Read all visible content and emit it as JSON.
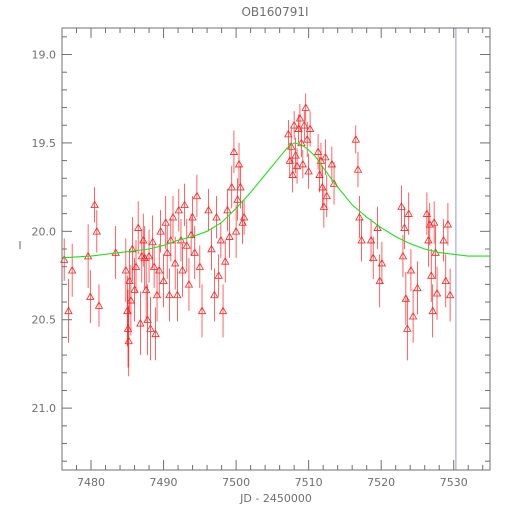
{
  "chart_data": {
    "type": "scatter",
    "title": "OB160791I",
    "xlabel": "JD - 2450000",
    "ylabel": "I",
    "xlim": [
      7476,
      7535
    ],
    "ylim": [
      21.35,
      18.85
    ],
    "y_inverted": true,
    "xticks": [
      7480,
      7490,
      7500,
      7510,
      7520,
      7530
    ],
    "yticks": [
      19.0,
      19.5,
      20.0,
      20.5,
      21.0
    ],
    "xtick_labels": [
      "7480",
      "7490",
      "7500",
      "7510",
      "7520",
      "7530"
    ],
    "ytick_labels": [
      "19.0",
      "19.5",
      "20.0",
      "20.5",
      "21.0"
    ],
    "grid": false,
    "marker": "triangle",
    "colors": {
      "data": "#ff2020",
      "model": "#20e020",
      "vline": "#9999cc",
      "axes": "#707070"
    },
    "vline_x": 7530.3,
    "series": [
      {
        "points": [
          [
            7476.3,
            20.16,
            0.12
          ],
          [
            7476.9,
            20.45,
            0.18
          ],
          [
            7477.4,
            20.22,
            0.15
          ],
          [
            7479.6,
            20.14,
            0.18
          ],
          [
            7479.9,
            20.37,
            0.15
          ],
          [
            7480.5,
            19.85,
            0.1
          ],
          [
            7480.8,
            20.0,
            0.12
          ],
          [
            7481.1,
            20.42,
            0.12
          ],
          [
            7483.4,
            20.12,
            0.15
          ],
          [
            7484.8,
            20.22,
            0.18
          ],
          [
            7485.0,
            20.45,
            0.2
          ],
          [
            7485.1,
            20.55,
            0.22
          ],
          [
            7485.2,
            20.62,
            0.2
          ],
          [
            7485.3,
            20.28,
            0.18
          ],
          [
            7485.5,
            20.39,
            0.2
          ],
          [
            7485.7,
            20.1,
            0.18
          ],
          [
            7486.0,
            20.33,
            0.18
          ],
          [
            7486.2,
            20.2,
            0.15
          ],
          [
            7486.5,
            19.98,
            0.15
          ],
          [
            7486.8,
            20.52,
            0.18
          ],
          [
            7487.0,
            20.14,
            0.15
          ],
          [
            7487.2,
            20.05,
            0.15
          ],
          [
            7487.4,
            20.15,
            0.18
          ],
          [
            7487.6,
            20.33,
            0.18
          ],
          [
            7487.8,
            20.5,
            0.2
          ],
          [
            7488.0,
            20.14,
            0.15
          ],
          [
            7488.2,
            20.55,
            0.18
          ],
          [
            7488.5,
            20.06,
            0.15
          ],
          [
            7488.7,
            20.2,
            0.12
          ],
          [
            7488.9,
            20.58,
            0.15
          ],
          [
            7489.1,
            20.36,
            0.15
          ],
          [
            7489.4,
            20.22,
            0.15
          ],
          [
            7489.6,
            20.0,
            0.12
          ],
          [
            7490.0,
            20.28,
            0.15
          ],
          [
            7490.3,
            19.95,
            0.15
          ],
          [
            7490.5,
            20.12,
            0.15
          ],
          [
            7490.8,
            20.36,
            0.15
          ],
          [
            7491.0,
            20.05,
            0.12
          ],
          [
            7491.3,
            19.92,
            0.12
          ],
          [
            7491.6,
            20.18,
            0.15
          ],
          [
            7491.9,
            20.36,
            0.15
          ],
          [
            7492.1,
            19.88,
            0.12
          ],
          [
            7492.4,
            20.05,
            0.12
          ],
          [
            7492.6,
            20.22,
            0.15
          ],
          [
            7492.9,
            19.85,
            0.12
          ],
          [
            7493.2,
            20.08,
            0.15
          ],
          [
            7493.5,
            20.3,
            0.15
          ],
          [
            7493.8,
            20.02,
            0.12
          ],
          [
            7494.0,
            19.92,
            0.12
          ],
          [
            7494.3,
            20.12,
            0.15
          ],
          [
            7494.6,
            19.8,
            0.12
          ],
          [
            7495.0,
            20.2,
            0.12
          ],
          [
            7495.3,
            20.45,
            0.15
          ],
          [
            7496.2,
            19.88,
            0.12
          ],
          [
            7496.6,
            20.1,
            0.12
          ],
          [
            7497.0,
            20.36,
            0.15
          ],
          [
            7497.3,
            19.92,
            0.12
          ],
          [
            7497.6,
            20.25,
            0.12
          ],
          [
            7497.9,
            20.05,
            0.1
          ],
          [
            7498.2,
            20.45,
            0.15
          ],
          [
            7498.5,
            20.17,
            0.12
          ],
          [
            7498.8,
            19.88,
            0.12
          ],
          [
            7499.1,
            20.03,
            0.12
          ],
          [
            7499.4,
            19.75,
            0.12
          ],
          [
            7499.7,
            19.55,
            0.12
          ],
          [
            7500.0,
            20.0,
            0.15
          ],
          [
            7500.2,
            19.82,
            0.12
          ],
          [
            7500.4,
            19.62,
            0.12
          ],
          [
            7500.6,
            19.75,
            0.12
          ],
          [
            7500.9,
            19.95,
            0.12
          ],
          [
            7501.1,
            19.92,
            0.1
          ],
          [
            7507.2,
            19.45,
            0.08
          ],
          [
            7507.4,
            19.6,
            0.1
          ],
          [
            7507.6,
            19.52,
            0.1
          ],
          [
            7507.8,
            19.68,
            0.1
          ],
          [
            7508.0,
            19.4,
            0.08
          ],
          [
            7508.2,
            19.57,
            0.1
          ],
          [
            7508.4,
            19.63,
            0.1
          ],
          [
            7508.6,
            19.42,
            0.08
          ],
          [
            7508.8,
            19.36,
            0.08
          ],
          [
            7509.0,
            19.5,
            0.08
          ],
          [
            7509.2,
            19.62,
            0.08
          ],
          [
            7509.4,
            19.4,
            0.08
          ],
          [
            7509.6,
            19.3,
            0.08
          ],
          [
            7509.8,
            19.48,
            0.1
          ],
          [
            7510.0,
            19.66,
            0.1
          ],
          [
            7510.2,
            19.42,
            0.1
          ],
          [
            7511.3,
            19.55,
            0.1
          ],
          [
            7511.5,
            19.68,
            0.1
          ],
          [
            7511.7,
            19.6,
            0.1
          ],
          [
            7511.9,
            19.75,
            0.12
          ],
          [
            7512.1,
            19.86,
            0.12
          ],
          [
            7512.3,
            19.58,
            0.1
          ],
          [
            7512.5,
            19.8,
            0.12
          ],
          [
            7513.2,
            19.62,
            0.1
          ],
          [
            7513.5,
            19.73,
            0.12
          ],
          [
            7516.5,
            19.48,
            0.08
          ],
          [
            7516.8,
            19.65,
            0.1
          ],
          [
            7517.0,
            19.92,
            0.12
          ],
          [
            7517.3,
            20.05,
            0.12
          ],
          [
            7518.6,
            20.05,
            0.12
          ],
          [
            7518.9,
            20.15,
            0.12
          ],
          [
            7519.5,
            19.98,
            0.12
          ],
          [
            7519.8,
            20.28,
            0.15
          ],
          [
            7520.1,
            20.18,
            0.12
          ],
          [
            7522.8,
            19.86,
            0.12
          ],
          [
            7523.0,
            20.14,
            0.12
          ],
          [
            7523.2,
            19.98,
            0.12
          ],
          [
            7523.4,
            20.38,
            0.15
          ],
          [
            7523.6,
            20.55,
            0.18
          ],
          [
            7523.8,
            19.9,
            0.12
          ],
          [
            7524.1,
            20.22,
            0.12
          ],
          [
            7524.4,
            20.48,
            0.15
          ],
          [
            7525.0,
            20.32,
            0.15
          ],
          [
            7526.3,
            19.9,
            0.12
          ],
          [
            7526.5,
            20.05,
            0.15
          ],
          [
            7526.7,
            19.96,
            0.12
          ],
          [
            7526.9,
            20.25,
            0.15
          ],
          [
            7527.1,
            20.45,
            0.15
          ],
          [
            7527.3,
            19.95,
            0.12
          ],
          [
            7527.5,
            20.12,
            0.15
          ],
          [
            7527.7,
            20.35,
            0.15
          ],
          [
            7528.6,
            20.05,
            0.12
          ],
          [
            7528.9,
            20.28,
            0.15
          ],
          [
            7529.2,
            19.96,
            0.12
          ],
          [
            7529.5,
            20.36,
            0.15
          ]
        ]
      }
    ],
    "model": {
      "x": [
        7476,
        7480,
        7484,
        7488,
        7490,
        7492,
        7494,
        7496,
        7498,
        7500,
        7502,
        7504,
        7506,
        7507,
        7508,
        7509,
        7510,
        7511,
        7512,
        7514,
        7516,
        7518,
        7520,
        7522,
        7524,
        7526,
        7528,
        7530,
        7532,
        7535
      ],
      "y": [
        20.15,
        20.14,
        20.12,
        20.1,
        20.08,
        20.05,
        20.03,
        20.0,
        19.95,
        19.87,
        19.78,
        19.68,
        19.58,
        19.53,
        19.5,
        19.51,
        19.54,
        19.58,
        19.64,
        19.75,
        19.85,
        19.92,
        19.98,
        20.03,
        20.07,
        20.1,
        20.12,
        20.13,
        20.14,
        20.14
      ]
    }
  }
}
